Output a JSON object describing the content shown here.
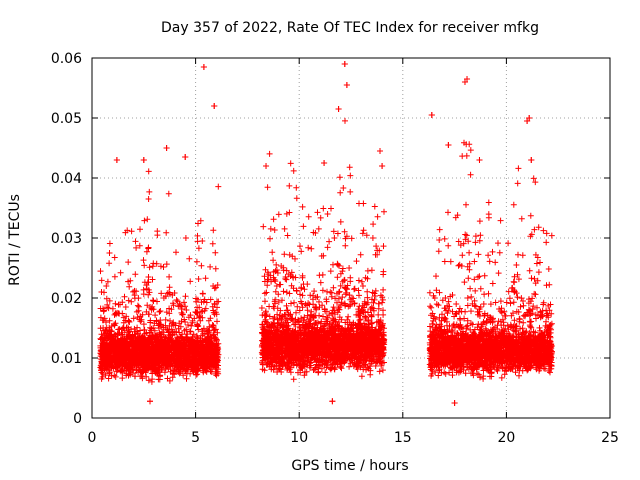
{
  "chart_data": {
    "type": "scatter",
    "title": "Day 357 of 2022, Rate Of TEC Index for receiver mfkg",
    "xlabel": "GPS time / hours",
    "ylabel": "ROTI / TECUs",
    "xlim": [
      0,
      25
    ],
    "ylim": [
      0,
      0.06
    ],
    "xticks": [
      "0",
      "5",
      "10",
      "15",
      "20",
      "25"
    ],
    "yticks": [
      "0",
      "0.01",
      "0.02",
      "0.03",
      "0.04",
      "0.05",
      "0.06"
    ],
    "grid": true,
    "marker": "+",
    "color": "#ff0000",
    "series": [
      {
        "name": "ROTI",
        "segments": [
          {
            "start": 0.4,
            "end": 6.1,
            "base": 0.0105,
            "spread": 0.006,
            "spike_max": 0.046
          },
          {
            "start": 8.2,
            "end": 14.1,
            "base": 0.012,
            "spread": 0.007,
            "spike_max": 0.052
          },
          {
            "start": 16.3,
            "end": 22.2,
            "base": 0.011,
            "spread": 0.006,
            "spike_max": 0.05
          }
        ],
        "notable_points": [
          {
            "x": 5.4,
            "y": 0.0585
          },
          {
            "x": 5.9,
            "y": 0.052
          },
          {
            "x": 12.2,
            "y": 0.059
          },
          {
            "x": 12.3,
            "y": 0.0555
          },
          {
            "x": 11.9,
            "y": 0.0515
          },
          {
            "x": 18.1,
            "y": 0.0565
          },
          {
            "x": 18.0,
            "y": 0.056
          },
          {
            "x": 16.4,
            "y": 0.0505
          },
          {
            "x": 21.0,
            "y": 0.0495
          },
          {
            "x": 21.1,
            "y": 0.05
          },
          {
            "x": 1.2,
            "y": 0.043
          },
          {
            "x": 2.5,
            "y": 0.043
          },
          {
            "x": 3.6,
            "y": 0.045
          },
          {
            "x": 4.5,
            "y": 0.0435
          },
          {
            "x": 8.4,
            "y": 0.042
          },
          {
            "x": 11.2,
            "y": 0.0425
          },
          {
            "x": 13.9,
            "y": 0.0445
          },
          {
            "x": 14.0,
            "y": 0.042
          },
          {
            "x": 17.2,
            "y": 0.0455
          },
          {
            "x": 18.7,
            "y": 0.043
          },
          {
            "x": 21.2,
            "y": 0.043
          },
          {
            "x": 17.5,
            "y": 0.0025
          },
          {
            "x": 11.6,
            "y": 0.0028
          },
          {
            "x": 2.8,
            "y": 0.0028
          }
        ]
      }
    ]
  }
}
